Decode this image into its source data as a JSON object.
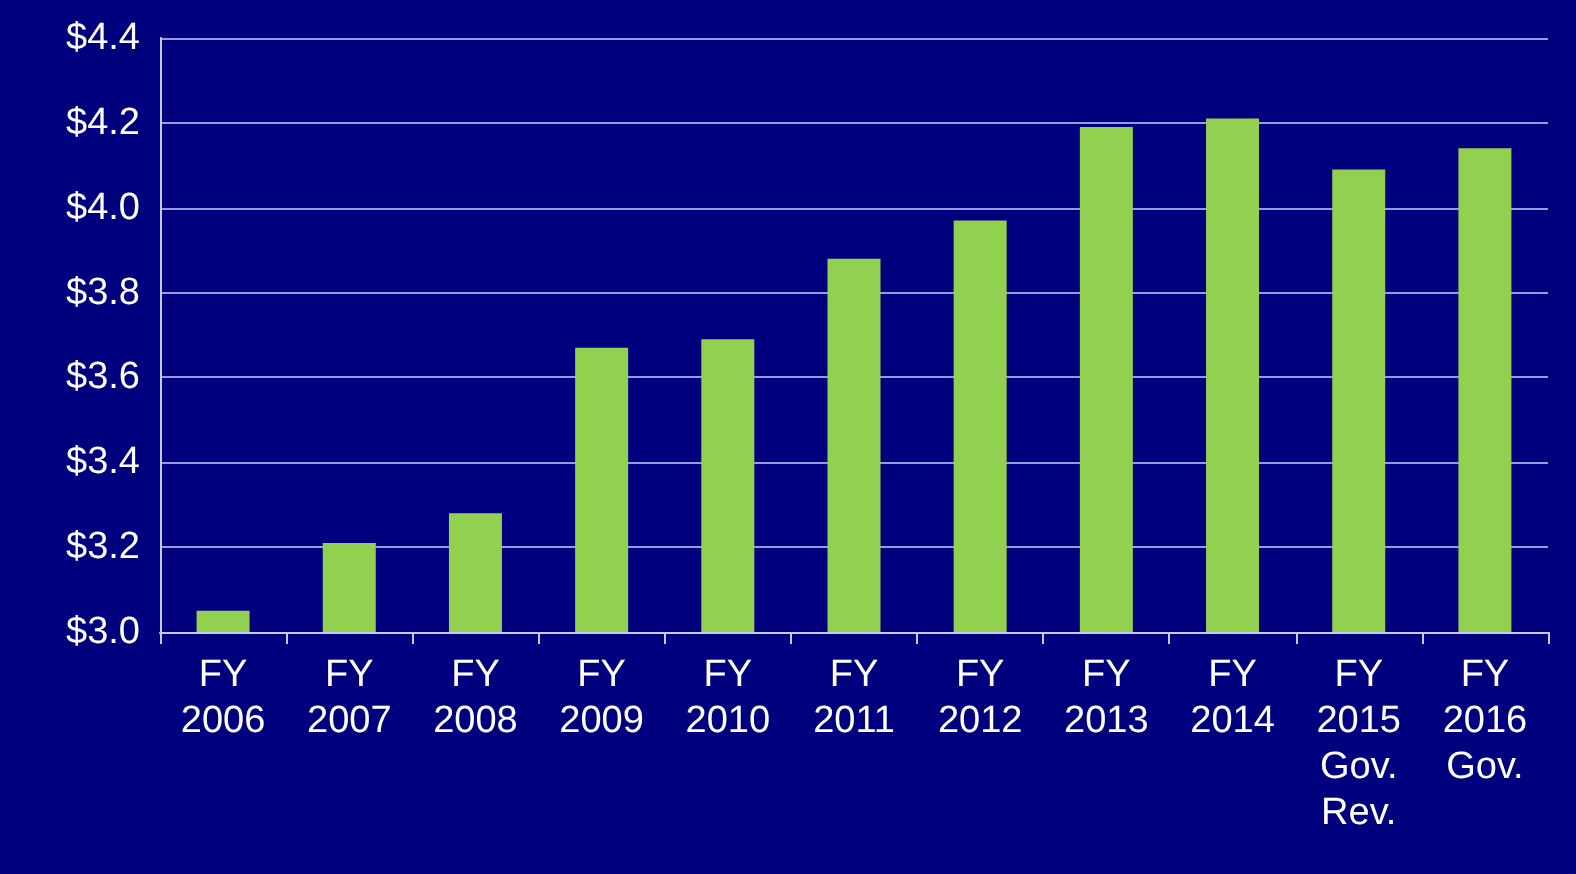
{
  "chart_data": {
    "type": "bar",
    "categories": [
      "FY\n2006",
      "FY\n2007",
      "FY\n2008",
      "FY\n2009",
      "FY\n2010",
      "FY\n2011",
      "FY\n2012",
      "FY\n2013",
      "FY\n2014",
      "FY\n2015\nGov.\nRev.",
      "FY\n2016\nGov."
    ],
    "values": [
      3.05,
      3.21,
      3.28,
      3.67,
      3.69,
      3.88,
      3.97,
      4.19,
      4.21,
      4.09,
      4.14
    ],
    "color": "#92d050",
    "ylim": [
      3.0,
      4.4
    ],
    "yticks": [
      {
        "value": 3.0,
        "label": "$3.0"
      },
      {
        "value": 3.2,
        "label": "$3.2"
      },
      {
        "value": 3.4,
        "label": "$3.4"
      },
      {
        "value": 3.6,
        "label": "$3.6"
      },
      {
        "value": 3.8,
        "label": "$3.8"
      },
      {
        "value": 4.0,
        "label": "$4.0"
      },
      {
        "value": 4.2,
        "label": "$4.2"
      },
      {
        "value": 4.4,
        "label": "$4.4"
      }
    ],
    "grid": "y"
  }
}
